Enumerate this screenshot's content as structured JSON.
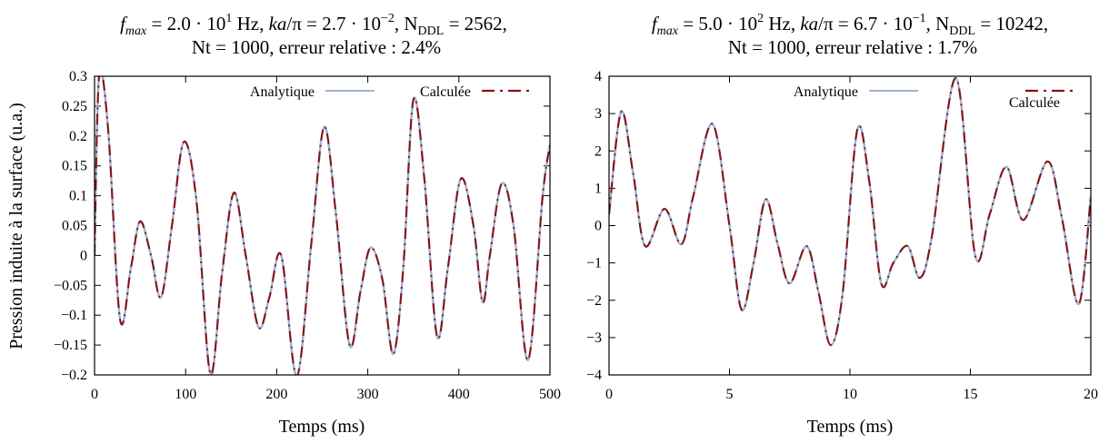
{
  "figure": {
    "ylabel": "Pression induite à la surface (u.a.)"
  },
  "chart_data": [
    {
      "type": "line",
      "title_line1_parts": {
        "fmax_sym": "f",
        "fmax_sub": "max",
        "fmax_val": " = 2.0 · 10",
        "fmax_exp": "1",
        "fmax_unit": " Hz, ",
        "ka_sym": "ka",
        "ka_val": "/π = 2.7 · 10",
        "ka_exp": "−2",
        "ndl_pre": ", N",
        "ndl_sub": "DDL",
        "ndl_val": " = 2562,"
      },
      "title_line2": "Nt = 1000, erreur relative : 2.4%",
      "xlabel": "Temps (ms)",
      "ylabel": "Pression induite à la surface (u.a.)",
      "xlim": [
        0,
        500
      ],
      "ylim": [
        -0.2,
        0.3
      ],
      "xticks": [
        0,
        100,
        200,
        300,
        400,
        500
      ],
      "xtick_labels": [
        "0",
        "100",
        "200",
        "300",
        "400",
        "500"
      ],
      "yticks": [
        -0.2,
        -0.15,
        -0.1,
        -0.05,
        0,
        0.05,
        0.1,
        0.15,
        0.2,
        0.25,
        0.3
      ],
      "ytick_labels": [
        "−0.2",
        "−0.15",
        "−0.1",
        "−0.05",
        "0",
        "0.05",
        "0.1",
        "0.15",
        "0.2",
        "0.25",
        "0.3"
      ],
      "grid": false,
      "legend_position": "top",
      "series": [
        {
          "name": "Analytique",
          "color": "#9bb4d8",
          "style": "solid"
        },
        {
          "name": "Calculée",
          "color": "#8b1010",
          "style": "dashed"
        }
      ],
      "x": [
        0,
        5,
        15,
        28,
        40,
        50,
        62,
        73,
        85,
        98,
        112,
        127,
        140,
        153,
        166,
        180,
        192,
        205,
        222,
        238,
        252,
        265,
        280,
        292,
        303,
        316,
        328,
        339,
        350,
        362,
        376,
        388,
        402,
        416,
        426,
        434,
        447,
        460,
        476,
        492,
        500
      ],
      "values": [
        0,
        0.3,
        0.21,
        -0.107,
        -0.02,
        0.057,
        0.0,
        -0.07,
        0.05,
        0.19,
        0.09,
        -0.197,
        -0.03,
        0.105,
        0.0,
        -0.12,
        -0.07,
        0.0,
        -0.202,
        0.02,
        0.215,
        0.07,
        -0.15,
        -0.06,
        0.013,
        -0.04,
        -0.165,
        -0.02,
        0.26,
        0.13,
        -0.135,
        -0.02,
        0.128,
        0.05,
        -0.078,
        0.0,
        0.12,
        0.05,
        -0.175,
        0.1,
        0.185
      ]
    },
    {
      "type": "line",
      "title_line1_parts": {
        "fmax_sym": "f",
        "fmax_sub": "max",
        "fmax_val": " = 5.0 · 10",
        "fmax_exp": "2",
        "fmax_unit": " Hz, ",
        "ka_sym": "ka",
        "ka_val": "/π = 6.7 · 10",
        "ka_exp": "−1",
        "ndl_pre": ", N",
        "ndl_sub": "DDL",
        "ndl_val": " = 10242,"
      },
      "title_line2": "Nt = 1000, erreur relative : 1.7%",
      "xlabel": "Temps (ms)",
      "xlim": [
        0,
        20
      ],
      "ylim": [
        -4,
        4
      ],
      "xticks": [
        0,
        5,
        10,
        15,
        20
      ],
      "xtick_labels": [
        "0",
        "5",
        "10",
        "15",
        "20"
      ],
      "yticks": [
        -4,
        -3,
        -2,
        -1,
        0,
        1,
        2,
        3,
        4
      ],
      "ytick_labels": [
        "−4",
        "−3",
        "−2",
        "−1",
        "0",
        "1",
        "2",
        "3",
        "4"
      ],
      "grid": false,
      "legend_position": "top",
      "series": [
        {
          "name": "Analytique",
          "color": "#9bb4d8",
          "style": "solid"
        },
        {
          "name": "Calculée",
          "color": "#8b1010",
          "style": "dashed"
        }
      ],
      "x": [
        0,
        0.5,
        1.0,
        1.5,
        2.3,
        3.0,
        3.5,
        4.3,
        5.0,
        5.5,
        6.0,
        6.5,
        7.0,
        7.5,
        8.2,
        8.7,
        9.2,
        9.7,
        10.3,
        10.8,
        11.3,
        11.8,
        12.4,
        12.9,
        13.4,
        14.4,
        15.2,
        15.8,
        16.5,
        17.2,
        18.2,
        18.8,
        19.5,
        20
      ],
      "values": [
        0.3,
        3.05,
        1.4,
        -0.55,
        0.45,
        -0.5,
        0.8,
        2.72,
        0.0,
        -2.25,
        -1.0,
        0.7,
        -0.5,
        -1.55,
        -0.55,
        -1.8,
        -3.2,
        -1.8,
        2.55,
        1.2,
        -1.55,
        -1.0,
        -0.55,
        -1.4,
        -0.3,
        3.95,
        -0.8,
        0.3,
        1.57,
        0.15,
        1.72,
        0.2,
        -2.1,
        0.8
      ]
    }
  ]
}
